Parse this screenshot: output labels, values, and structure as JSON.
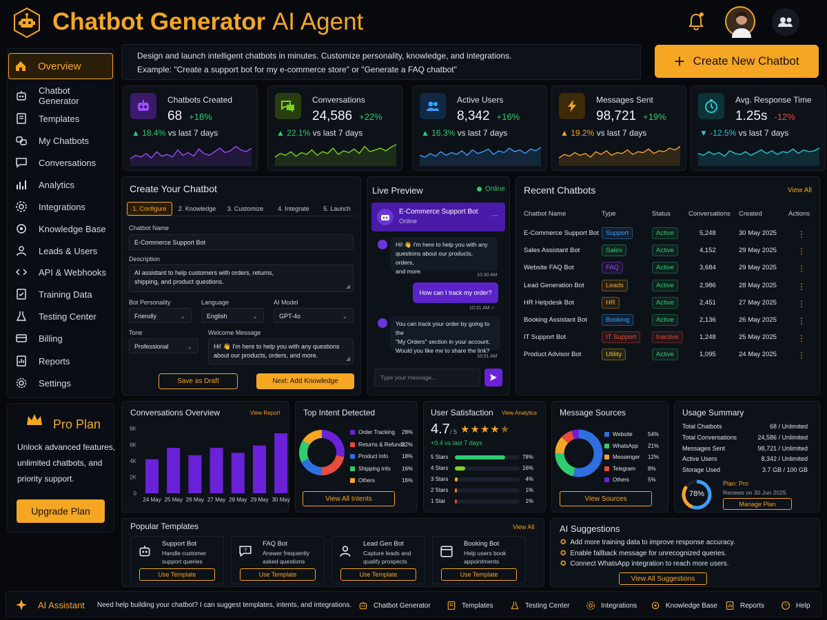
{
  "header": {
    "title_bold": "Chatbot Generator",
    "title_light": "AI Agent",
    "intro_line1": "Design and launch intelligent chatbots in minutes. Customize personality, knowledge, and integrations.",
    "intro_line2": "Example: \"Create a support bot for my e-commerce store\" or \"Generate a FAQ chatbot\"",
    "create_button": "Create New Chatbot"
  },
  "sidebar": {
    "items": [
      {
        "label": "Overview",
        "icon": "home-icon"
      },
      {
        "label": "Chatbot Generator",
        "icon": "robot-icon"
      },
      {
        "label": "Templates",
        "icon": "template-icon"
      },
      {
        "label": "My Chatbots",
        "icon": "bots-icon"
      },
      {
        "label": "Conversations",
        "icon": "chat-icon"
      },
      {
        "label": "Analytics",
        "icon": "analytics-icon"
      },
      {
        "label": "Integrations",
        "icon": "integrations-icon"
      },
      {
        "label": "Knowledge Base",
        "icon": "knowledge-icon"
      },
      {
        "label": "Leads & Users",
        "icon": "users-icon"
      },
      {
        "label": "API & Webhooks",
        "icon": "api-icon"
      },
      {
        "label": "Training Data",
        "icon": "training-icon"
      },
      {
        "label": "Testing Center",
        "icon": "testing-icon"
      },
      {
        "label": "Billing",
        "icon": "billing-icon"
      },
      {
        "label": "Reports",
        "icon": "reports-icon"
      },
      {
        "label": "Settings",
        "icon": "settings-icon"
      }
    ]
  },
  "pro_plan": {
    "title": "Pro Plan",
    "line1": "Unlock advanced features,",
    "line2": "unlimited chatbots, and",
    "line3": "priority support.",
    "button": "Upgrade Plan"
  },
  "stats": [
    {
      "label": "Chatbots Created",
      "value": "68",
      "change": "+18%",
      "sub_pct": "18.4%",
      "sub_text": "vs last 7 days",
      "dir": "up",
      "color": "#9b4dff"
    },
    {
      "label": "Conversations",
      "value": "24,586",
      "change": "+22%",
      "sub_pct": "22.1%",
      "sub_text": "vs last 7 days",
      "dir": "up",
      "color": "#7ed321"
    },
    {
      "label": "Active Users",
      "value": "8,342",
      "change": "+16%",
      "sub_pct": "16.3%",
      "sub_text": "vs last 7 days",
      "dir": "up",
      "color": "#3aa0ff"
    },
    {
      "label": "Messages Sent",
      "value": "98,721",
      "change": "+19%",
      "sub_pct": "19.2%",
      "sub_text": "vs last 7 days",
      "dir": "up",
      "color": "#f5a623"
    },
    {
      "label": "Avg. Response Time",
      "value": "1.25s",
      "change": "-12%",
      "sub_pct": "-12.5%",
      "sub_text": "vs last 7 days",
      "dir": "down",
      "color": "#1fc8d8"
    }
  ],
  "create": {
    "title": "Create Your Chatbot",
    "tabs": [
      "1. Configure",
      "2. Knowledge",
      "3. Customize",
      "4. Integrate",
      "5. Launch"
    ],
    "name_label": "Chatbot Name",
    "name_value": "E-Commerce Support Bot",
    "desc_label": "Description",
    "desc_line1": "AI assistant to help customers with orders, returns,",
    "desc_line2": "shipping, and product questions.",
    "personality_label": "Bot Personality",
    "personality_value": "Friendly",
    "language_label": "Language",
    "language_value": "English",
    "model_label": "AI Model",
    "model_value": "GPT-4o",
    "tone_label": "Tone",
    "tone_value": "Professional",
    "welcome_label": "Welcome Message",
    "welcome_line1": "Hi! 👋 I'm here to help you with any questions",
    "welcome_line2": "about our products, orders, and more.",
    "draft_button": "Save as Draft",
    "next_button": "Next: Add Knowledge"
  },
  "preview": {
    "title": "Live Preview",
    "status": "Online",
    "bot_name": "E-Commerce Support Bot",
    "bot_status": "Online",
    "msg1_line1": "Hi! 👋 I'm here to help you with any",
    "msg1_line2": "questions about our products, orders,",
    "msg1_line3": "and more.",
    "msg1_time": "10:30 AM",
    "msg2": "How can I track my order?",
    "msg2_time": "10:31 AM ✓",
    "msg3_line1": "You can track your order by going to the",
    "msg3_line2": "\"My Orders\" section in your account.",
    "msg3_line3": "Would you like me to share the link?",
    "msg3_time": "10:31 AM",
    "input_placeholder": "Type your message..."
  },
  "recent": {
    "title": "Recent Chatbots",
    "view_all": "View All",
    "columns": [
      "Chatbot Name",
      "Type",
      "Status",
      "Conversations",
      "Created",
      "Actions"
    ],
    "rows": [
      {
        "name": "E-Commerce Support Bot",
        "type": "Support",
        "type_color": "#3aa0ff",
        "status": "Active",
        "conv": "5,248",
        "created": "30 May 2025"
      },
      {
        "name": "Sales Assistant Bot",
        "type": "Sales",
        "type_color": "#2ecc71",
        "status": "Active",
        "conv": "4,152",
        "created": "29 May 2025"
      },
      {
        "name": "Website FAQ Bot",
        "type": "FAQ",
        "type_color": "#9b4dff",
        "status": "Active",
        "conv": "3,684",
        "created": "29 May 2025"
      },
      {
        "name": "Lead Generation Bot",
        "type": "Leads",
        "type_color": "#f5a623",
        "status": "Active",
        "conv": "2,986",
        "created": "28 May 2025"
      },
      {
        "name": "HR Helpdesk Bot",
        "type": "HR",
        "type_color": "#f5a623",
        "status": "Active",
        "conv": "2,451",
        "created": "27 May 2025"
      },
      {
        "name": "Booking Assistant Bot",
        "type": "Booking",
        "type_color": "#3aa0ff",
        "status": "Active",
        "conv": "2,136",
        "created": "26 May 2025"
      },
      {
        "name": "IT Support Bot",
        "type": "IT Support",
        "type_color": "#e74c3c",
        "status": "Inactive",
        "conv": "1,248",
        "created": "25 May 2025"
      },
      {
        "name": "Product Advisor Bot",
        "type": "Utility",
        "type_color": "#f1c40f",
        "status": "Active",
        "conv": "1,095",
        "created": "24 May 2025"
      }
    ]
  },
  "conv_overview": {
    "title": "Conversations Overview",
    "link": "View Report"
  },
  "chart_data": {
    "type": "bar",
    "title": "Conversations Overview",
    "categories": [
      "24 May",
      "25 May",
      "26 May",
      "27 May",
      "28 May",
      "29 May",
      "30 May"
    ],
    "values": [
      4200,
      5600,
      4700,
      5600,
      5000,
      5900,
      7400
    ],
    "ylim": [
      0,
      8000
    ],
    "yticks": [
      "8K",
      "6K",
      "4K",
      "2K",
      "0"
    ],
    "color": "#6a22d8"
  },
  "intents": {
    "title": "Top Intent Detected",
    "button": "View All Intents",
    "items": [
      {
        "label": "Order Tracking",
        "pct": "28%",
        "value": 28,
        "color": "#6a22d8"
      },
      {
        "label": "Returns & Refunds",
        "pct": "22%",
        "value": 22,
        "color": "#e74c3c"
      },
      {
        "label": "Product Info",
        "pct": "18%",
        "value": 18,
        "color": "#2f6fe0"
      },
      {
        "label": "Shipping Info",
        "pct": "16%",
        "value": 16,
        "color": "#2ecc71"
      },
      {
        "label": "Others",
        "pct": "16%",
        "value": 16,
        "color": "#f5a623"
      }
    ]
  },
  "satisfaction": {
    "title": "User Satisfaction",
    "link": "View Analytics",
    "score": "4.7",
    "score_of": "/ 5",
    "change": "+0.4 vs last 7 days",
    "rows": [
      {
        "label": "5 Stars",
        "pct": "78%",
        "value": 78,
        "color": "#2ecc71"
      },
      {
        "label": "4 Stars",
        "pct": "16%",
        "value": 16,
        "color": "#7ed321"
      },
      {
        "label": "3 Stars",
        "pct": "4%",
        "value": 4,
        "color": "#f5a623"
      },
      {
        "label": "2 Stars",
        "pct": "1%",
        "value": 1,
        "color": "#e67e22"
      },
      {
        "label": "1 Star",
        "pct": "1%",
        "value": 1,
        "color": "#e74c3c"
      }
    ]
  },
  "sources": {
    "title": "Message Sources",
    "button": "View Sources",
    "items": [
      {
        "label": "Website",
        "pct": "54%",
        "value": 54,
        "color": "#2f6fe0"
      },
      {
        "label": "WhatsApp",
        "pct": "21%",
        "value": 21,
        "color": "#2ecc71"
      },
      {
        "label": "Messenger",
        "pct": "12%",
        "value": 12,
        "color": "#f5a623"
      },
      {
        "label": "Telegram",
        "pct": "8%",
        "value": 8,
        "color": "#e74c3c"
      },
      {
        "label": "Others",
        "pct": "5%",
        "value": 5,
        "color": "#6a22d8"
      }
    ]
  },
  "usage": {
    "title": "Usage Summary",
    "rows": [
      {
        "label": "Total Chatbots",
        "value": "68 / Unlimited"
      },
      {
        "label": "Total Conversations",
        "value": "24,586 / Unlimited"
      },
      {
        "label": "Messages Sent",
        "value": "98,721 / Unlimited"
      },
      {
        "label": "Active Users",
        "value": "8,342 / Unlimited"
      },
      {
        "label": "Storage Used",
        "value": "3.7 GB / 100 GB"
      }
    ],
    "pct_label": "78%",
    "pct_value": 78,
    "plan": "Plan: Pro",
    "renews": "Renews on 30 Jun 2025",
    "manage": "Manage Plan"
  },
  "templates": {
    "title": "Popular Templates",
    "view_all": "View All",
    "items": [
      {
        "name": "Support Bot",
        "line1": "Handle customer",
        "line2": "support queries",
        "button": "Use Template",
        "icon": "robot-icon"
      },
      {
        "name": "FAQ Bot",
        "line1": "Answer frequently",
        "line2": "asked questions",
        "button": "Use Template",
        "icon": "faq-icon"
      },
      {
        "name": "Lead Gen Bot",
        "line1": "Capture leads and",
        "line2": "qualify prospects",
        "button": "Use Template",
        "icon": "lead-icon"
      },
      {
        "name": "Booking Bot",
        "line1": "Help users book",
        "line2": "appointments",
        "button": "Use Template",
        "icon": "calendar-icon"
      }
    ]
  },
  "suggestions": {
    "title": "AI Suggestions",
    "items": [
      "Add more training data to improve response accuracy.",
      "Enable fallback message for unrecognized queries.",
      "Connect WhatsApp integration to reach more users."
    ],
    "button": "View All Suggestions"
  },
  "assistant": {
    "label": "AI Assistant",
    "text": "Need help building your chatbot? I can suggest templates, intents, and integrations.",
    "links": [
      "Chatbot Generator",
      "Templates",
      "Testing Center",
      "Integrations",
      "Knowledge Base",
      "Reports",
      "Help"
    ]
  }
}
